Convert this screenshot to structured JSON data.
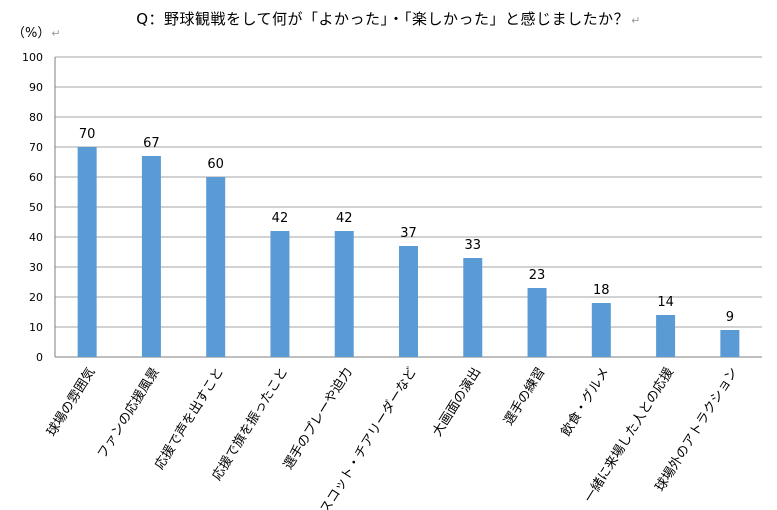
{
  "title": "Q：野球観戦をして何が「よかった」・「楽しかった」と感じましたか？",
  "return_mark": "↵",
  "unit_label": "（%）",
  "chart_data": {
    "type": "bar",
    "title": "Q：野球観戦をして何が「よかった」・「楽しかった」と感じましたか？",
    "ylabel": "（%）",
    "xlabel": "",
    "ylim": [
      0,
      100
    ],
    "yticks": [
      0,
      10,
      20,
      30,
      40,
      50,
      60,
      70,
      80,
      90,
      100
    ],
    "grid": true,
    "legend": "none",
    "bar_color": "#5b9bd5",
    "categories": [
      "球場の雰囲気",
      "ファンの応援風景",
      "応援で声を出すこと",
      "応援で旗を振ったこと",
      "選手のプレーや迫力",
      "マスコット・チアリーダーなど",
      "大画面の演出",
      "選手の練習",
      "飲食・グルメ",
      "一緒に来場した人との応援",
      "球場外のアトラクション"
    ],
    "values": [
      70,
      67,
      60,
      42,
      42,
      37,
      33,
      23,
      18,
      14,
      9
    ]
  }
}
